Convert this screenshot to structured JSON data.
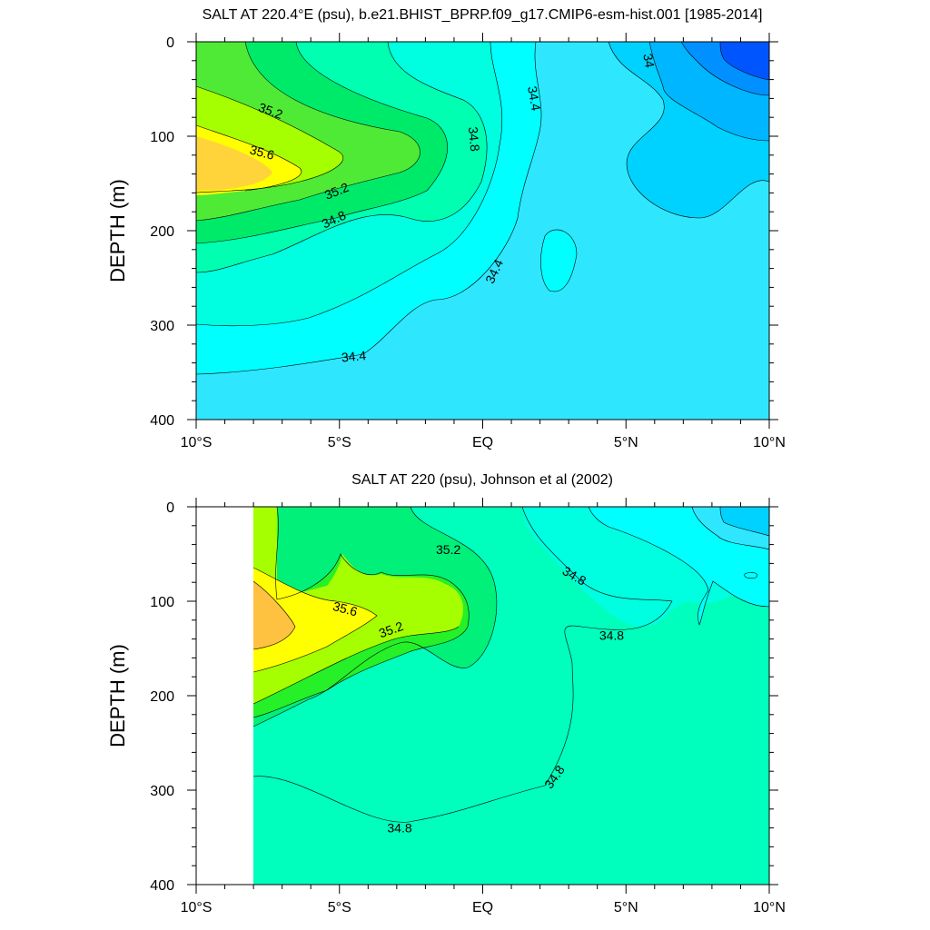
{
  "chart_data": [
    {
      "type": "contour",
      "title": "SALT AT 220.4°E (psu), b.e21.BHIST_BPRP.f09_g17.CMIP6-esm-hist.001 [1985-2014]",
      "ylabel": "DEPTH (m)",
      "xlabel": "",
      "xlim": [
        -10,
        10
      ],
      "ylim": [
        400,
        0
      ],
      "x_ticks": [
        {
          "value": -10,
          "label": "10°S"
        },
        {
          "value": -5,
          "label": "5°S"
        },
        {
          "value": 0,
          "label": "EQ"
        },
        {
          "value": 5,
          "label": "5°N"
        },
        {
          "value": 10,
          "label": "10°N"
        }
      ],
      "y_ticks": [
        {
          "value": 0,
          "label": "0"
        },
        {
          "value": 100,
          "label": "100"
        },
        {
          "value": 200,
          "label": "200"
        },
        {
          "value": 300,
          "label": "300"
        },
        {
          "value": 400,
          "label": "400"
        }
      ],
      "contour_labels": [
        {
          "text": "35.2",
          "x": -7.4,
          "y": 73,
          "angle": 20
        },
        {
          "text": "35.6",
          "x": -7.7,
          "y": 117,
          "angle": 15
        },
        {
          "text": "35.2",
          "x": -5.1,
          "y": 158,
          "angle": -22
        },
        {
          "text": "34.8",
          "x": -5.2,
          "y": 188,
          "angle": -25
        },
        {
          "text": "34.8",
          "x": -0.3,
          "y": 103,
          "angle": 85
        },
        {
          "text": "34.4",
          "x": 1.8,
          "y": 60,
          "angle": 80
        },
        {
          "text": "34.4",
          "x": 0.4,
          "y": 243,
          "angle": -65
        },
        {
          "text": "34.4",
          "x": -4.5,
          "y": 333,
          "angle": -5
        },
        {
          "text": "34",
          "x": 5.8,
          "y": 20,
          "angle": 80
        }
      ],
      "colors": {
        "35.8": "#FFD43A",
        "35.6": "#FFFF00",
        "35.4": "#A5FF00",
        "35.2": "#4FEA35",
        "35.0": "#00EA6A",
        "34.8": "#00FFB0",
        "34.6": "#00FFE0",
        "34.4": "#00FFFF",
        "34.2": "#2EE7FF",
        "34.0": "#00D2FF",
        "33.8": "#00B6FF",
        "33.6": "#0090FF",
        "33.4": "#0055FF"
      }
    },
    {
      "type": "contour",
      "title": "SALT AT 220 (psu), Johnson et al (2002)",
      "ylabel": "DEPTH (m)",
      "xlabel": "",
      "xlim": [
        -10,
        10
      ],
      "ylim": [
        400,
        0
      ],
      "data_xlim": [
        -8,
        10
      ],
      "x_ticks": [
        {
          "value": -10,
          "label": "10°S"
        },
        {
          "value": -5,
          "label": "5°S"
        },
        {
          "value": 0,
          "label": "EQ"
        },
        {
          "value": 5,
          "label": "5°N"
        },
        {
          "value": 10,
          "label": "10°N"
        }
      ],
      "y_ticks": [
        {
          "value": 0,
          "label": "0"
        },
        {
          "value": 100,
          "label": "100"
        },
        {
          "value": 200,
          "label": "200"
        },
        {
          "value": 300,
          "label": "300"
        },
        {
          "value": 400,
          "label": "400"
        }
      ],
      "contour_labels": [
        {
          "text": "35.2",
          "x": -1.2,
          "y": 45,
          "angle": 0
        },
        {
          "text": "34.8",
          "x": 3.2,
          "y": 73,
          "angle": 30
        },
        {
          "text": "34.8",
          "x": 4.5,
          "y": 136,
          "angle": 0
        },
        {
          "text": "35.6",
          "x": -4.8,
          "y": 108,
          "angle": 15
        },
        {
          "text": "35.2",
          "x": -3.2,
          "y": 130,
          "angle": -20
        },
        {
          "text": "34.8",
          "x": 2.5,
          "y": 286,
          "angle": -55
        },
        {
          "text": "34.8",
          "x": -2.9,
          "y": 340,
          "angle": 0
        }
      ],
      "colors": {
        "35.8": "#FFC240",
        "35.6": "#FFFF00",
        "35.4": "#A5FF00",
        "35.2": "#25F028",
        "35.0": "#00F07A",
        "34.8": "#00FFBC",
        "34.6": "#00FFE0",
        "34.4": "#00FFFF",
        "34.2": "#2EE7FF",
        "34.0": "#00D2FF"
      }
    }
  ]
}
